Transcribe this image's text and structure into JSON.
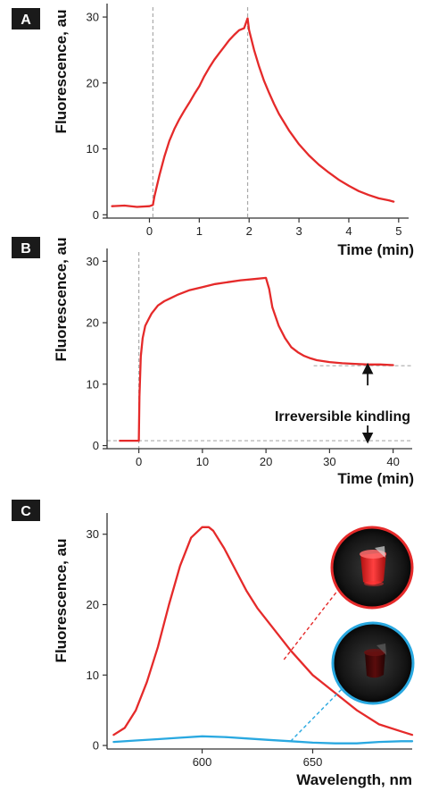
{
  "colors": {
    "red": "#e52a2a",
    "blue": "#29a8e0",
    "axis": "#333333",
    "guide": "#aaaaaa",
    "badge": "#1a1a1a"
  },
  "chart_data": [
    {
      "panel": "A",
      "type": "line",
      "xlabel": "Time (min)",
      "ylabel": "Fluorescence, au",
      "xlim": [
        -0.85,
        5.2
      ],
      "ylim": [
        -0.5,
        31.5
      ],
      "xticks": [
        0,
        1,
        2,
        3,
        4,
        5
      ],
      "yticks": [
        0,
        10,
        20,
        30
      ],
      "guides": {
        "vertical_x": [
          0.07,
          1.97
        ]
      },
      "series": [
        {
          "color": "red",
          "x": [
            -0.75,
            -0.5,
            -0.25,
            0.0,
            0.07,
            0.1,
            0.2,
            0.3,
            0.4,
            0.5,
            0.6,
            0.7,
            0.8,
            0.9,
            1.0,
            1.1,
            1.2,
            1.3,
            1.4,
            1.5,
            1.6,
            1.7,
            1.8,
            1.9,
            1.97,
            2.0,
            2.1,
            2.2,
            2.3,
            2.4,
            2.5,
            2.6,
            2.8,
            3.0,
            3.2,
            3.4,
            3.6,
            3.8,
            4.0,
            4.2,
            4.4,
            4.6,
            4.8,
            4.9
          ],
          "y": [
            1.3,
            1.4,
            1.2,
            1.3,
            1.5,
            2.8,
            6.0,
            8.8,
            11.2,
            13.0,
            14.5,
            15.8,
            17.0,
            18.3,
            19.5,
            21.0,
            22.3,
            23.5,
            24.5,
            25.5,
            26.5,
            27.3,
            28.0,
            28.3,
            29.8,
            28.0,
            25.0,
            22.5,
            20.3,
            18.5,
            16.8,
            15.3,
            12.8,
            10.7,
            9.0,
            7.6,
            6.4,
            5.3,
            4.4,
            3.6,
            3.0,
            2.5,
            2.2,
            2.0
          ]
        }
      ]
    },
    {
      "panel": "B",
      "type": "line",
      "xlabel": "Time (min)",
      "ylabel": "Fluorescence, au",
      "xlim": [
        -5,
        43
      ],
      "ylim": [
        -0.5,
        31.5
      ],
      "xticks": [
        0,
        10,
        20,
        30,
        40
      ],
      "yticks": [
        0,
        10,
        20,
        30
      ],
      "guides": {
        "vertical_x": [
          0
        ],
        "horizontal_y": [
          0.8,
          13.0
        ]
      },
      "annotation": "Irreversible kindling",
      "series": [
        {
          "color": "red",
          "x": [
            -3,
            -2,
            -1,
            0,
            0.1,
            0.3,
            0.6,
            1,
            1.5,
            2,
            3,
            4,
            5,
            6,
            8,
            10,
            12,
            14,
            16,
            18,
            20,
            20.5,
            21,
            22,
            23,
            24,
            25,
            26,
            27,
            28,
            30,
            32,
            34,
            36,
            38,
            40
          ],
          "y": [
            0.8,
            0.8,
            0.8,
            0.8,
            8.0,
            14.5,
            17.5,
            19.5,
            20.5,
            21.5,
            22.8,
            23.5,
            24.0,
            24.5,
            25.3,
            25.8,
            26.3,
            26.6,
            26.9,
            27.1,
            27.3,
            25.5,
            22.5,
            19.5,
            17.5,
            16.0,
            15.2,
            14.6,
            14.2,
            13.9,
            13.6,
            13.4,
            13.3,
            13.2,
            13.2,
            13.1
          ]
        }
      ]
    },
    {
      "panel": "C",
      "type": "line",
      "xlabel": "Wavelength, nm",
      "ylabel": "Fluorescence, au",
      "xlim": [
        557,
        695
      ],
      "ylim": [
        -0.5,
        32.5
      ],
      "xticks": [
        600,
        650
      ],
      "yticks": [
        0,
        10,
        20,
        30
      ],
      "series": [
        {
          "color": "red",
          "x": [
            560,
            565,
            570,
            575,
            580,
            585,
            590,
            595,
            600,
            603,
            605,
            610,
            615,
            620,
            625,
            630,
            640,
            650,
            660,
            670,
            680,
            690,
            695
          ],
          "y": [
            1.5,
            2.5,
            5.0,
            9.0,
            14.0,
            20.0,
            25.5,
            29.5,
            31.0,
            31.0,
            30.5,
            28.0,
            25.0,
            22.0,
            19.5,
            17.5,
            13.5,
            10.0,
            7.5,
            5.0,
            3.0,
            2.0,
            1.5
          ]
        },
        {
          "color": "blue",
          "x": [
            560,
            570,
            580,
            590,
            600,
            610,
            620,
            630,
            640,
            650,
            660,
            670,
            680,
            690,
            695
          ],
          "y": [
            0.5,
            0.7,
            0.9,
            1.1,
            1.3,
            1.2,
            1.0,
            0.8,
            0.6,
            0.4,
            0.3,
            0.3,
            0.5,
            0.6,
            0.6
          ]
        }
      ],
      "insets": [
        {
          "name": "bright-vial",
          "ring_color": "red",
          "pointer_to": [
            637,
            12.2
          ]
        },
        {
          "name": "dim-vial",
          "ring_color": "blue",
          "pointer_to": [
            640,
            0.6
          ]
        }
      ]
    }
  ]
}
